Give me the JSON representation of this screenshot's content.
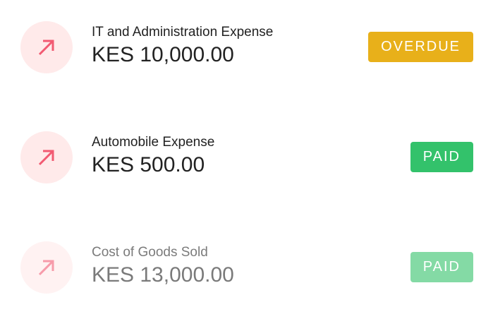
{
  "colors": {
    "overdue": "#e8b01a",
    "paid": "#33c26b",
    "icon": "#f25a72",
    "icon_bg": "#ffeaea"
  },
  "transactions": [
    {
      "icon": "arrow-up-right-icon",
      "title": "IT and Administration Expense",
      "amount": "KES 10,000.00",
      "status": "OVERDUE"
    },
    {
      "icon": "arrow-up-right-icon",
      "title": "Automobile Expense",
      "amount": "KES 500.00",
      "status": "PAID"
    },
    {
      "icon": "arrow-up-right-icon",
      "title": "Cost of Goods Sold",
      "amount": "KES 13,000.00",
      "status": "PAID"
    }
  ]
}
